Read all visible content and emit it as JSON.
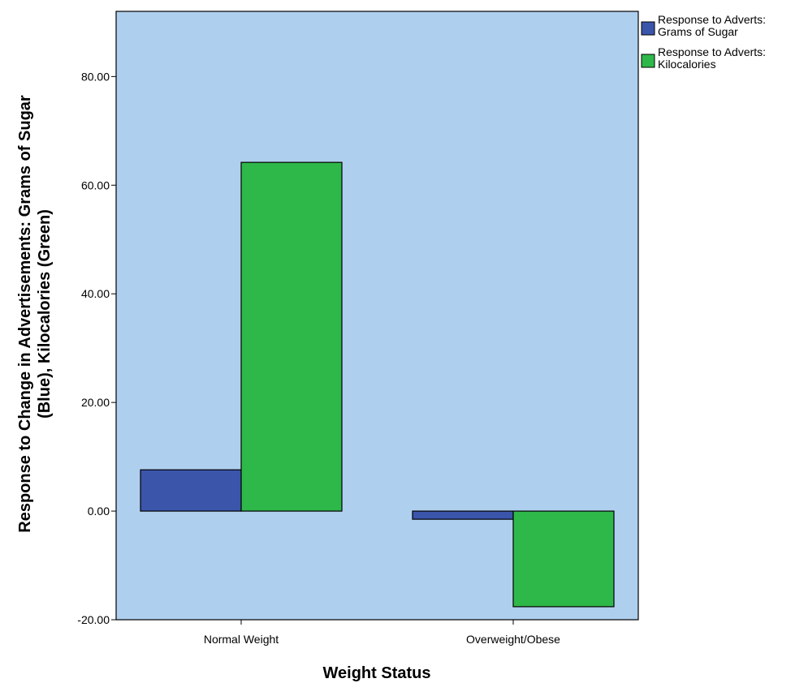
{
  "chart_data": {
    "type": "bar",
    "xlabel": "Weight Status",
    "ylabel_lines": [
      "Response to Change in Advertisements: Grams of Sugar",
      "(Blue), Kilocalories (Green)"
    ],
    "categories": [
      "Normal Weight",
      "Overweight/Obese"
    ],
    "series": [
      {
        "name_lines": [
          "Response to Adverts:",
          "Grams of Sugar"
        ],
        "color": "#3b55ab",
        "values": [
          7.6,
          -1.5
        ]
      },
      {
        "name_lines": [
          "Response to Adverts:",
          "Kilocalories"
        ],
        "color": "#2fb84a",
        "values": [
          64.2,
          -17.6
        ]
      }
    ],
    "ylim": [
      -20,
      92
    ],
    "yticks": [
      -20,
      0,
      20,
      40,
      60,
      80
    ],
    "ytick_labels": [
      "-20.00",
      "0.00",
      "20.00",
      "40.00",
      "60.00",
      "80.00"
    ],
    "plot_background": "#afcfee",
    "grid": false,
    "legend_position": "top-right"
  }
}
